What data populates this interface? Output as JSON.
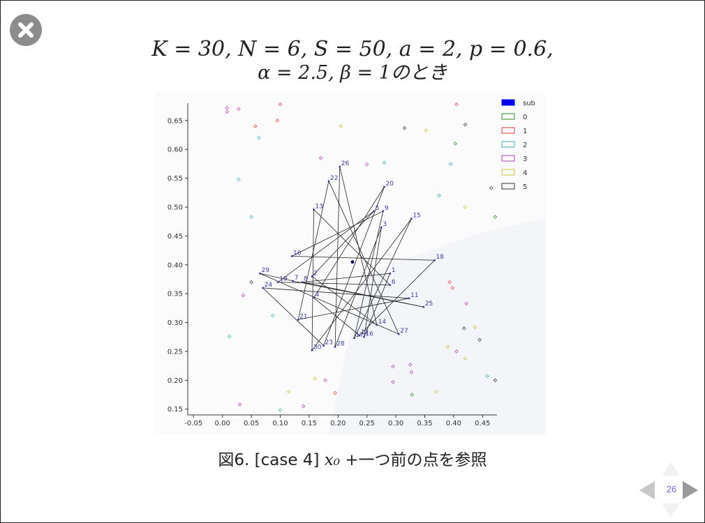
{
  "slide": {
    "title_line1": "K = 30, N = 6, S = 50, a = 2, p = 0.6,",
    "title_line2": "α = 2.5, β = 1のとき",
    "caption_prefix": "図6. [case 4] ",
    "caption_math": "x₀",
    "caption_suffix": " +一つ前の点を参照",
    "page_number": "26"
  },
  "icons": {
    "close": "close-icon",
    "prev": "arrow-left-icon",
    "next": "arrow-right-icon",
    "up": "arrow-up-icon",
    "down": "arrow-down-icon"
  },
  "chart_data": {
    "type": "scatter",
    "xlim": [
      -0.06,
      0.475
    ],
    "ylim": [
      0.14,
      0.68
    ],
    "xticks": [
      "-0.05",
      "0.00",
      "0.05",
      "0.10",
      "0.15",
      "0.20",
      "0.25",
      "0.30",
      "0.35",
      "0.40",
      "0.45"
    ],
    "xtick_values": [
      -0.05,
      0,
      0.05,
      0.1,
      0.15,
      0.2,
      0.25,
      0.3,
      0.35,
      0.4,
      0.45
    ],
    "yticks": [
      "0.15",
      "0.20",
      "0.25",
      "0.30",
      "0.35",
      "0.40",
      "0.45",
      "0.50",
      "0.55",
      "0.60",
      "0.65"
    ],
    "ytick_values": [
      0.15,
      0.2,
      0.25,
      0.3,
      0.35,
      0.4,
      0.45,
      0.5,
      0.55,
      0.6,
      0.65
    ],
    "legend": [
      {
        "name": "sub",
        "color": "#0000ee",
        "filled": true
      },
      {
        "name": "0",
        "color": "#2e8b2e",
        "filled": false
      },
      {
        "name": "1",
        "color": "#d94040",
        "filled": false
      },
      {
        "name": "2",
        "color": "#40b0b0",
        "filled": false
      },
      {
        "name": "3",
        "color": "#b040b0",
        "filled": false
      },
      {
        "name": "4",
        "color": "#c8c040",
        "filled": false
      },
      {
        "name": "5",
        "color": "#333333",
        "filled": false
      }
    ],
    "legend_placement": "top-right",
    "sub_point": {
      "x": 0.225,
      "y": 0.405,
      "color": "#000066"
    },
    "path_color": "#222222",
    "labeled_points": [
      {
        "label": "1",
        "x": 0.29,
        "y": 0.385
      },
      {
        "label": "2",
        "x": 0.155,
        "y": 0.38
      },
      {
        "label": "3",
        "x": 0.275,
        "y": 0.465
      },
      {
        "label": "4",
        "x": 0.158,
        "y": 0.343
      },
      {
        "label": "5",
        "x": 0.262,
        "y": 0.493
      },
      {
        "label": "6",
        "x": 0.29,
        "y": 0.365
      },
      {
        "label": "7",
        "x": 0.122,
        "y": 0.372
      },
      {
        "label": "8",
        "x": 0.138,
        "y": 0.37
      },
      {
        "label": "9",
        "x": 0.278,
        "y": 0.493
      },
      {
        "label": "10",
        "x": 0.12,
        "y": 0.415
      },
      {
        "label": "11",
        "x": 0.323,
        "y": 0.342
      },
      {
        "label": "12",
        "x": 0.237,
        "y": 0.278
      },
      {
        "label": "13",
        "x": 0.158,
        "y": 0.496
      },
      {
        "label": "14",
        "x": 0.267,
        "y": 0.296
      },
      {
        "label": "15",
        "x": 0.327,
        "y": 0.48
      },
      {
        "label": "16",
        "x": 0.245,
        "y": 0.275
      },
      {
        "label": "17",
        "x": 0.228,
        "y": 0.273
      },
      {
        "label": "18",
        "x": 0.367,
        "y": 0.408
      },
      {
        "label": "19",
        "x": 0.096,
        "y": 0.37
      },
      {
        "label": "20",
        "x": 0.28,
        "y": 0.535
      },
      {
        "label": "21",
        "x": 0.131,
        "y": 0.305
      },
      {
        "label": "22",
        "x": 0.184,
        "y": 0.545
      },
      {
        "label": "23",
        "x": 0.175,
        "y": 0.26
      },
      {
        "label": "24",
        "x": 0.07,
        "y": 0.36
      },
      {
        "label": "25",
        "x": 0.348,
        "y": 0.327
      },
      {
        "label": "26",
        "x": 0.203,
        "y": 0.57
      },
      {
        "label": "27",
        "x": 0.305,
        "y": 0.28
      },
      {
        "label": "28",
        "x": 0.195,
        "y": 0.258
      },
      {
        "label": "29",
        "x": 0.065,
        "y": 0.385
      },
      {
        "label": "30",
        "x": 0.155,
        "y": 0.252
      }
    ],
    "path_order": [
      "29",
      "27",
      "22",
      "21",
      "11",
      "24",
      "23",
      "20",
      "4",
      "12",
      "18",
      "10",
      "9",
      "17",
      "15",
      "30",
      "13",
      "6",
      "19",
      "5",
      "2",
      "14",
      "26",
      "28",
      "3",
      "16",
      "1",
      "8",
      "25",
      "7",
      "29"
    ],
    "background_points": [
      {
        "x": 0.008,
        "y": 0.665,
        "c": "#b040b0"
      },
      {
        "x": 0.008,
        "y": 0.672,
        "c": "#b040b0"
      },
      {
        "x": 0.028,
        "y": 0.67,
        "c": "#b040b0"
      },
      {
        "x": 0.1,
        "y": 0.678,
        "c": "#d94040"
      },
      {
        "x": 0.057,
        "y": 0.64,
        "c": "#d94040"
      },
      {
        "x": 0.063,
        "y": 0.62,
        "c": "#40b0b0"
      },
      {
        "x": 0.095,
        "y": 0.65,
        "c": "#d94040"
      },
      {
        "x": 0.205,
        "y": 0.64,
        "c": "#c8c040"
      },
      {
        "x": 0.315,
        "y": 0.637,
        "c": "#333333"
      },
      {
        "x": 0.352,
        "y": 0.633,
        "c": "#c8c040"
      },
      {
        "x": 0.405,
        "y": 0.678,
        "c": "#d94040"
      },
      {
        "x": 0.42,
        "y": 0.643,
        "c": "#333333"
      },
      {
        "x": 0.403,
        "y": 0.61,
        "c": "#2e8b2e"
      },
      {
        "x": 0.395,
        "y": 0.575,
        "c": "#40b0b0"
      },
      {
        "x": 0.28,
        "y": 0.577,
        "c": "#40b0b0"
      },
      {
        "x": 0.25,
        "y": 0.574,
        "c": "#b040b0"
      },
      {
        "x": 0.17,
        "y": 0.585,
        "c": "#b040b0"
      },
      {
        "x": 0.028,
        "y": 0.548,
        "c": "#40b0b0"
      },
      {
        "x": 0.05,
        "y": 0.483,
        "c": "#40b0b0"
      },
      {
        "x": 0.375,
        "y": 0.52,
        "c": "#40b0b0"
      },
      {
        "x": 0.42,
        "y": 0.5,
        "c": "#c8c040"
      },
      {
        "x": 0.465,
        "y": 0.533,
        "c": "#333333"
      },
      {
        "x": 0.472,
        "y": 0.483,
        "c": "#2e8b2e"
      },
      {
        "x": 0.05,
        "y": 0.37,
        "c": "#333333"
      },
      {
        "x": 0.036,
        "y": 0.347,
        "c": "#b040b0"
      },
      {
        "x": 0.087,
        "y": 0.312,
        "c": "#40b0b0"
      },
      {
        "x": 0.012,
        "y": 0.276,
        "c": "#40b0b0"
      },
      {
        "x": 0.393,
        "y": 0.37,
        "c": "#d94040"
      },
      {
        "x": 0.398,
        "y": 0.36,
        "c": "#d94040"
      },
      {
        "x": 0.422,
        "y": 0.333,
        "c": "#b040b0"
      },
      {
        "x": 0.418,
        "y": 0.29,
        "c": "#333333"
      },
      {
        "x": 0.437,
        "y": 0.292,
        "c": "#c8c040"
      },
      {
        "x": 0.445,
        "y": 0.27,
        "c": "#333333"
      },
      {
        "x": 0.39,
        "y": 0.258,
        "c": "#c8c040"
      },
      {
        "x": 0.405,
        "y": 0.25,
        "c": "#b040b0"
      },
      {
        "x": 0.42,
        "y": 0.238,
        "c": "#c8c040"
      },
      {
        "x": 0.458,
        "y": 0.207,
        "c": "#40b0b0"
      },
      {
        "x": 0.472,
        "y": 0.2,
        "c": "#333333"
      },
      {
        "x": 0.295,
        "y": 0.224,
        "c": "#b040b0"
      },
      {
        "x": 0.325,
        "y": 0.227,
        "c": "#b040b0"
      },
      {
        "x": 0.327,
        "y": 0.214,
        "c": "#b040b0"
      },
      {
        "x": 0.295,
        "y": 0.197,
        "c": "#b040b0"
      },
      {
        "x": 0.16,
        "y": 0.203,
        "c": "#c8c040"
      },
      {
        "x": 0.178,
        "y": 0.2,
        "c": "#b040b0"
      },
      {
        "x": 0.195,
        "y": 0.178,
        "c": "#d94040"
      },
      {
        "x": 0.115,
        "y": 0.18,
        "c": "#c8c040"
      },
      {
        "x": 0.328,
        "y": 0.175,
        "c": "#2e8b2e"
      },
      {
        "x": 0.37,
        "y": 0.18,
        "c": "#c8c040"
      },
      {
        "x": 0.03,
        "y": 0.158,
        "c": "#b040b0"
      },
      {
        "x": 0.1,
        "y": 0.148,
        "c": "#40b0b0"
      },
      {
        "x": 0.14,
        "y": 0.155,
        "c": "#b040b0"
      }
    ]
  }
}
